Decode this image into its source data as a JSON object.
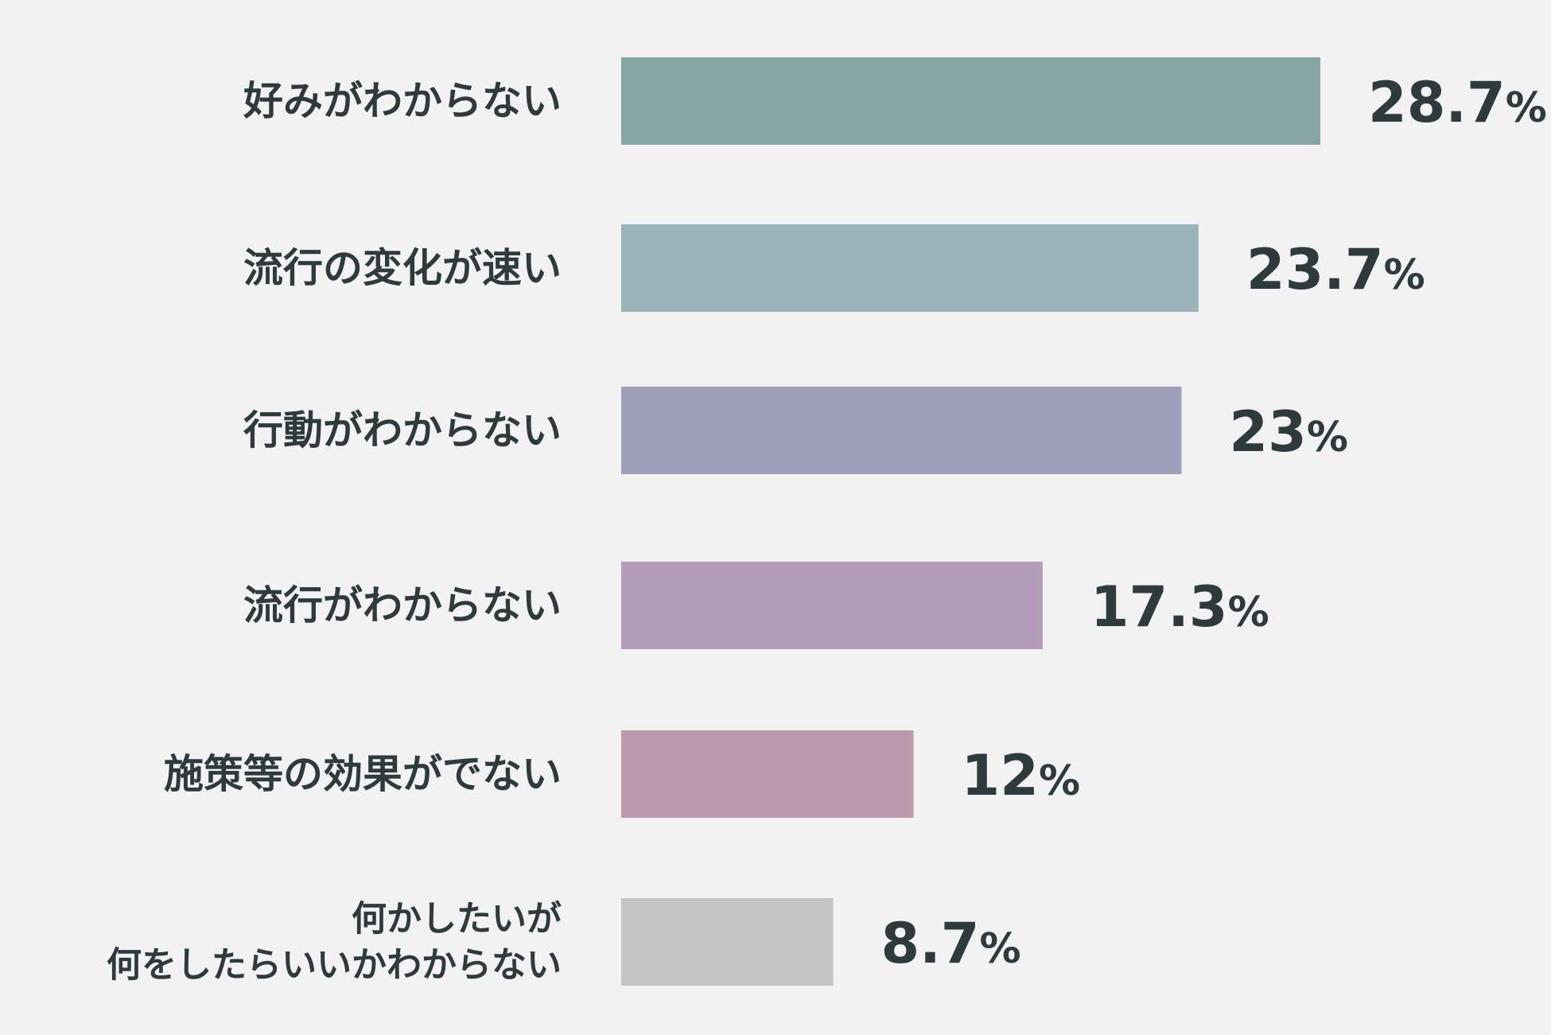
{
  "chart_data": {
    "type": "bar",
    "orientation": "horizontal",
    "categories": [
      [
        "好みがわからない"
      ],
      [
        "流行の変化が速い"
      ],
      [
        "行動がわからない"
      ],
      [
        "流行がわからない"
      ],
      [
        "施策等の効果がでない"
      ],
      [
        "何かしたいが",
        "何をしたらいいかわからない"
      ]
    ],
    "values": [
      28.7,
      23.7,
      23,
      17.3,
      12,
      8.7
    ],
    "value_labels": [
      "28.7",
      "23.7",
      "23",
      "17.3",
      "12",
      "8.7"
    ],
    "unit": "%",
    "colors": [
      "#86a5a4",
      "#9bb3b8",
      "#9ca0bb",
      "#b29cb9",
      "#bb9aab",
      "#c4c4c4"
    ],
    "xlim": [
      0,
      28.7
    ],
    "grid": false,
    "legend": "none"
  }
}
